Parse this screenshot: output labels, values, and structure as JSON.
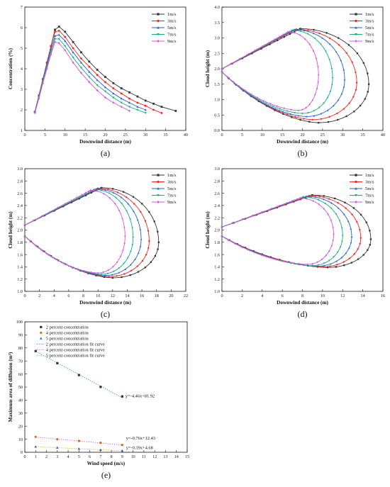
{
  "chart_data": [
    {
      "type": "line",
      "caption": "(a)",
      "xlabel": "Downwind distance (m)",
      "ylabel": "Concentration (%)",
      "xlim": [
        0,
        40
      ],
      "ylim": [
        1,
        7
      ],
      "xticks": [
        "0",
        "5",
        "10",
        "15",
        "20",
        "25",
        "30",
        "35",
        "40"
      ],
      "yticks": [
        "1",
        "2",
        "3",
        "4",
        "5",
        "6",
        "7"
      ],
      "legend_position": "top-right",
      "series": [
        {
          "name": "1m/s",
          "color": "#333333",
          "marker": "square",
          "x": [
            2.5,
            3.5,
            4.5,
            5.5,
            6.5,
            7.5,
            8.5,
            10,
            12,
            14,
            16,
            18,
            20,
            22,
            24,
            26,
            28,
            30,
            32,
            34,
            37.5
          ],
          "y": [
            1.9,
            2.7,
            3.5,
            4.3,
            5.1,
            5.9,
            6.05,
            5.8,
            5.3,
            4.8,
            4.35,
            3.95,
            3.6,
            3.3,
            3.05,
            2.85,
            2.65,
            2.45,
            2.3,
            2.15,
            1.95
          ]
        },
        {
          "name": "3m/s",
          "color": "#ff1f1f",
          "marker": "circle",
          "x": [
            2.5,
            3.5,
            4.5,
            5.5,
            6.5,
            7.5,
            8.5,
            10,
            12,
            14,
            16,
            18,
            20,
            22,
            24,
            26,
            28,
            30,
            32,
            34
          ],
          "y": [
            1.9,
            2.7,
            3.5,
            4.3,
            5.1,
            5.8,
            5.85,
            5.55,
            5.0,
            4.5,
            4.1,
            3.7,
            3.35,
            3.05,
            2.8,
            2.55,
            2.35,
            2.2,
            2.0,
            1.85
          ]
        },
        {
          "name": "5m/s",
          "color": "#1f5fd6",
          "marker": "triangle-up",
          "x": [
            2.5,
            3.5,
            4.5,
            5.5,
            6.5,
            7.5,
            8.5,
            10,
            12,
            14,
            16,
            18,
            20,
            22,
            24,
            26,
            28,
            30
          ],
          "y": [
            1.9,
            2.65,
            3.45,
            4.2,
            4.95,
            5.6,
            5.65,
            5.35,
            4.8,
            4.3,
            3.85,
            3.45,
            3.1,
            2.8,
            2.55,
            2.35,
            2.15,
            2.0
          ]
        },
        {
          "name": "7m/s",
          "color": "#12b07c",
          "marker": "triangle-down",
          "x": [
            2.5,
            3.5,
            4.5,
            5.5,
            6.5,
            7.5,
            8.5,
            10,
            12,
            14,
            16,
            18,
            20,
            22,
            24,
            26,
            28,
            30
          ],
          "y": [
            1.85,
            2.6,
            3.4,
            4.1,
            4.8,
            5.45,
            5.45,
            5.1,
            4.55,
            4.05,
            3.6,
            3.2,
            2.9,
            2.6,
            2.35,
            2.15,
            2.0,
            1.85
          ]
        },
        {
          "name": "9m/s",
          "color": "#d756e0",
          "marker": "diamond",
          "x": [
            2.5,
            3.5,
            4.5,
            5.5,
            6.5,
            7.5,
            8.5,
            10,
            12,
            14,
            16,
            18,
            20,
            22,
            24,
            26
          ],
          "y": [
            1.85,
            2.55,
            3.3,
            4.0,
            4.7,
            5.3,
            5.25,
            4.9,
            4.3,
            3.8,
            3.35,
            2.95,
            2.6,
            2.35,
            2.15,
            1.95
          ]
        }
      ]
    },
    {
      "type": "line",
      "caption": "(b)",
      "xlabel": "Downwind distance (m)",
      "ylabel": "Cloud height (m)",
      "xlim": [
        0,
        40
      ],
      "ylim": [
        0,
        4
      ],
      "xticks": [
        "0",
        "5",
        "10",
        "15",
        "20",
        "25",
        "30",
        "35",
        "40"
      ],
      "yticks": [
        "0.0",
        "0.5",
        "1.0",
        "1.5",
        "2.0",
        "2.5",
        "3.0",
        "3.5",
        "4.0"
      ],
      "legend_position": "top-right",
      "series": [
        {
          "name": "1m/s",
          "color": "#333333",
          "marker": "square",
          "max_x": 36.5,
          "top_y": 3.3,
          "top_x": 19.5,
          "bottom_y": 0.25,
          "bottom_x": 24.0,
          "tip_y": 1.5
        },
        {
          "name": "3m/s",
          "color": "#ff1f1f",
          "marker": "circle",
          "max_x": 33.5,
          "top_y": 3.28,
          "top_x": 18.5,
          "bottom_y": 0.35,
          "bottom_x": 22.5,
          "tip_y": 1.55
        },
        {
          "name": "5m/s",
          "color": "#1f5fd6",
          "marker": "triangle-up",
          "max_x": 30.5,
          "top_y": 3.27,
          "top_x": 18.0,
          "bottom_y": 0.45,
          "bottom_x": 21.0,
          "tip_y": 1.65
        },
        {
          "name": "7m/s",
          "color": "#12b07c",
          "marker": "triangle-down",
          "max_x": 27.5,
          "top_y": 3.25,
          "top_x": 17.5,
          "bottom_y": 0.55,
          "bottom_x": 20.0,
          "tip_y": 1.7
        },
        {
          "name": "9m/s",
          "color": "#d756e0",
          "marker": "diamond",
          "max_x": 24.0,
          "top_y": 3.2,
          "top_x": 16.5,
          "bottom_y": 0.65,
          "bottom_x": 19.0,
          "tip_y": 1.8
        }
      ],
      "start_top_y": 2.0,
      "start_bottom_y": 1.9
    },
    {
      "type": "line",
      "caption": "(c)",
      "xlabel": "Downwind distance (m)",
      "ylabel": "Cloud height (m)",
      "xlim": [
        0,
        22
      ],
      "ylim": [
        1.0,
        3.0
      ],
      "xticks": [
        "0",
        "2",
        "4",
        "6",
        "8",
        "10",
        "12",
        "14",
        "16",
        "18",
        "20",
        "22"
      ],
      "yticks": [
        "1.0",
        "1.2",
        "1.4",
        "1.6",
        "1.8",
        "2.0",
        "2.2",
        "2.4",
        "2.6",
        "2.8",
        "3.0"
      ],
      "legend_position": "top-right",
      "series": [
        {
          "name": "1m/s",
          "color": "#333333",
          "marker": "square",
          "max_x": 18.3,
          "top_y": 2.69,
          "top_x": 10.5,
          "bottom_y": 1.22,
          "bottom_x": 12.0,
          "tip_y": 1.8
        },
        {
          "name": "3m/s",
          "color": "#ff1f1f",
          "marker": "circle",
          "max_x": 17.0,
          "top_y": 2.68,
          "top_x": 10.0,
          "bottom_y": 1.24,
          "bottom_x": 11.5,
          "tip_y": 1.82
        },
        {
          "name": "5m/s",
          "color": "#1f5fd6",
          "marker": "triangle-up",
          "max_x": 15.9,
          "top_y": 2.67,
          "top_x": 9.8,
          "bottom_y": 1.26,
          "bottom_x": 11.0,
          "tip_y": 1.85
        },
        {
          "name": "7m/s",
          "color": "#12b07c",
          "marker": "triangle-down",
          "max_x": 14.8,
          "top_y": 2.66,
          "top_x": 9.5,
          "bottom_y": 1.28,
          "bottom_x": 10.5,
          "tip_y": 1.88
        },
        {
          "name": "9m/s",
          "color": "#d756e0",
          "marker": "diamond",
          "max_x": 13.7,
          "top_y": 2.65,
          "top_x": 9.0,
          "bottom_y": 1.3,
          "bottom_x": 10.0,
          "tip_y": 1.9
        }
      ],
      "start_top_y": 2.08,
      "start_bottom_y": 1.9
    },
    {
      "type": "line",
      "caption": "(d)",
      "xlabel": "Downwind distance (m)",
      "ylabel": "Cloud height (m)",
      "xlim": [
        0,
        16
      ],
      "ylim": [
        1.0,
        3.0
      ],
      "xticks": [
        "0",
        "2",
        "4",
        "6",
        "8",
        "10",
        "12",
        "14",
        "16"
      ],
      "yticks": [
        "1.0",
        "1.2",
        "1.4",
        "1.6",
        "1.8",
        "2.0",
        "2.2",
        "2.4",
        "2.6",
        "2.8",
        "3.0"
      ],
      "legend_position": "top-right",
      "series": [
        {
          "name": "1m/s",
          "color": "#333333",
          "marker": "square",
          "max_x": 14.8,
          "top_y": 2.57,
          "top_x": 9.0,
          "bottom_y": 1.39,
          "bottom_x": 10.5,
          "tip_y": 1.85
        },
        {
          "name": "3m/s",
          "color": "#ff1f1f",
          "marker": "circle",
          "max_x": 13.8,
          "top_y": 2.56,
          "top_x": 8.7,
          "bottom_y": 1.4,
          "bottom_x": 10.0,
          "tip_y": 1.87
        },
        {
          "name": "5m/s",
          "color": "#1f5fd6",
          "marker": "triangle-up",
          "max_x": 12.9,
          "top_y": 2.55,
          "top_x": 8.4,
          "bottom_y": 1.41,
          "bottom_x": 9.5,
          "tip_y": 1.89
        },
        {
          "name": "7m/s",
          "color": "#12b07c",
          "marker": "triangle-down",
          "max_x": 12.0,
          "top_y": 2.54,
          "top_x": 8.1,
          "bottom_y": 1.42,
          "bottom_x": 9.0,
          "tip_y": 1.91
        },
        {
          "name": "9m/s",
          "color": "#d756e0",
          "marker": "diamond",
          "max_x": 11.1,
          "top_y": 2.52,
          "top_x": 7.8,
          "bottom_y": 1.44,
          "bottom_x": 8.5,
          "tip_y": 1.93
        }
      ],
      "start_top_y": 2.05,
      "start_bottom_y": 1.9
    },
    {
      "type": "scatter",
      "caption": "(e)",
      "xlabel": "Wind speed (m/s)",
      "ylabel": "Maximum area of diffusion (m²)",
      "xlim": [
        0,
        15
      ],
      "ylim": [
        0,
        100
      ],
      "xticks": [
        "0",
        "1",
        "2",
        "3",
        "4",
        "5",
        "6",
        "7",
        "8",
        "9",
        "10",
        "11",
        "12",
        "13",
        "14",
        "15"
      ],
      "yticks": [
        "0",
        "10",
        "20",
        "30",
        "40",
        "50",
        "60",
        "70",
        "80",
        "90",
        "100"
      ],
      "legend_position": "top-left",
      "series": [
        {
          "name": "2 percent concentration",
          "color": "#333333",
          "marker": "square",
          "x": [
            1,
            3,
            5,
            7,
            9
          ],
          "y": [
            77.6,
            68.3,
            59.2,
            50.1,
            42.8
          ]
        },
        {
          "name": "4 percent concentration",
          "color": "#d2691e",
          "marker": "circle",
          "x": [
            1,
            3,
            5,
            7,
            9
          ],
          "y": [
            11.8,
            9.9,
            8.7,
            7.3,
            5.6
          ]
        },
        {
          "name": "5 percent concentration",
          "color": "#1f5fd6",
          "marker": "triangle-up",
          "x": [
            1,
            3,
            5,
            7,
            9
          ],
          "y": [
            4.3,
            3.6,
            2.7,
            1.9,
            1.2
          ]
        }
      ],
      "fits": [
        {
          "name": "2 percent concentration fit curve",
          "color": "#20a0b0",
          "slope": -4.46,
          "intercept": 81.92,
          "equation": "y=-4.46x+81.92"
        },
        {
          "name": "4 percent concentration fit curve",
          "color": "#e060c0",
          "slope": -0.76,
          "intercept": 12.43,
          "equation": "y=-0.76x+12.43"
        },
        {
          "name": "5 percent concentration fit curve",
          "color": "#c8c020",
          "slope": -0.39,
          "intercept": 4.68,
          "equation": "y=-0.39x+4.68"
        }
      ]
    }
  ]
}
